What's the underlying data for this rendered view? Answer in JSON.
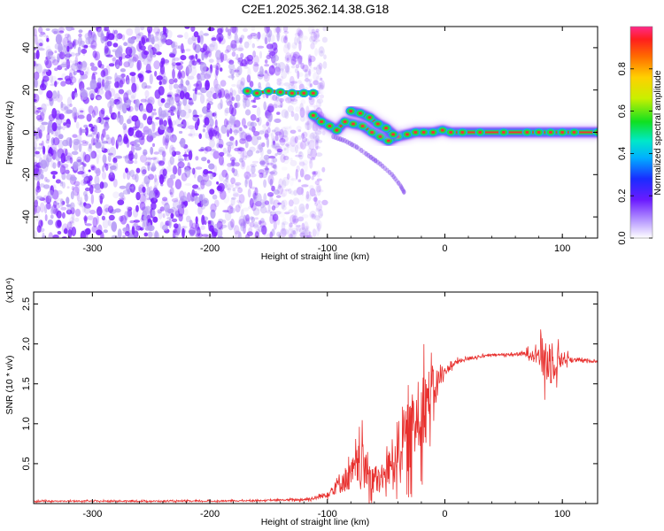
{
  "title": "C2E1.2025.362.14.38.G18",
  "colors": {
    "snr_line": "#e8312f",
    "heat_violet": "#7a1fff",
    "track_core": "#f03434",
    "track_mid": "#22dd44",
    "track_outer": "#1aa8e8"
  },
  "chart_data": [
    {
      "type": "heatmap",
      "xlabel": "Height of straight line (km)",
      "ylabel": "Frequency (Hz)",
      "xlim": [
        -350,
        130
      ],
      "ylim": [
        -50,
        50
      ],
      "xticks": [
        "-300",
        "-200",
        "-100",
        "0",
        "100"
      ],
      "xtick_values": [
        -300,
        -200,
        -100,
        0,
        100
      ],
      "yticks": [
        "40",
        "20",
        "0",
        "-20",
        "-40"
      ],
      "ytick_values": [
        40,
        20,
        0,
        -20,
        -40
      ],
      "colorbar": {
        "label": "Normalized spectral amplitude",
        "range": [
          0,
          1
        ],
        "ticks": [
          "0.0",
          "0.2",
          "0.4",
          "0.6",
          "0.8"
        ],
        "tick_values": [
          0,
          0.2,
          0.4,
          0.6,
          0.8
        ]
      },
      "noise_region": {
        "x_range": [
          -350,
          -110
        ],
        "y_range": [
          -50,
          50
        ],
        "amplitude": 0.2
      },
      "tracks": [
        {
          "x": [
            -168,
            -160,
            -150,
            -140,
            -130,
            -120,
            -112
          ],
          "y": [
            19.5,
            18.5,
            19.5,
            19,
            18.5,
            18.5,
            18.5
          ]
        },
        {
          "x": [
            -112,
            -105,
            -98,
            -92,
            -85,
            -78,
            -70,
            -62,
            -55,
            -48,
            -40,
            -32,
            -25,
            -18,
            -10,
            -2,
            5,
            15,
            30,
            50,
            70,
            80,
            90,
            100,
            110,
            130
          ],
          "y": [
            8,
            5,
            3,
            1,
            5,
            4,
            3,
            0,
            -2,
            -4,
            -2,
            -1,
            0,
            0,
            0,
            1,
            0,
            0,
            0,
            0,
            0,
            0,
            0,
            0,
            0,
            0
          ]
        },
        {
          "x": [
            -80,
            -72,
            -64,
            -57,
            -50,
            -44
          ],
          "y": [
            10,
            9,
            7,
            4,
            2,
            -1
          ]
        }
      ],
      "faint_streak": {
        "x": [
          -95,
          -85,
          -75,
          -65,
          -55,
          -45,
          -38,
          -34
        ],
        "y": [
          -2,
          -4,
          -7,
          -11,
          -15,
          -20,
          -25,
          -29
        ]
      }
    },
    {
      "type": "line",
      "xlabel": "Height of straight line (km)",
      "ylabel": "SNR (10 * v/v)",
      "scale_label": "(x10⁴)",
      "xlim": [
        -350,
        130
      ],
      "ylim": [
        0,
        2.65
      ],
      "xticks": [
        "-300",
        "-200",
        "-100",
        "0",
        "100"
      ],
      "xtick_values": [
        -300,
        -200,
        -100,
        0,
        100
      ],
      "yticks": [
        "0.5",
        "1.0",
        "1.5",
        "2.0",
        "2.5"
      ],
      "ytick_values": [
        0.5,
        1.0,
        1.5,
        2.0,
        2.5
      ],
      "series": [
        {
          "x": [
            -350,
            -300,
            -250,
            -200,
            -150,
            -120,
            -110,
            -100,
            -95,
            -90,
            -85,
            -80,
            -75,
            -70,
            -65,
            -60,
            -55,
            -50,
            -45,
            -40,
            -35,
            -30,
            -25,
            -20,
            -15,
            -10,
            -5,
            0,
            5,
            10,
            20,
            30,
            40,
            60,
            80,
            85,
            90,
            95,
            100,
            110,
            120,
            130
          ],
          "y": [
            0.03,
            0.03,
            0.03,
            0.03,
            0.04,
            0.05,
            0.07,
            0.12,
            0.18,
            0.26,
            0.3,
            0.35,
            0.45,
            0.5,
            0.38,
            0.3,
            0.28,
            0.38,
            0.52,
            0.7,
            0.78,
            0.85,
            1.0,
            1.2,
            1.3,
            1.4,
            1.55,
            1.65,
            1.72,
            1.77,
            1.82,
            1.84,
            1.86,
            1.87,
            1.88,
            1.8,
            1.75,
            1.8,
            1.82,
            1.8,
            1.79,
            1.78
          ],
          "amplitude_noise": [
            0.01,
            0.01,
            0.01,
            0.01,
            0.01,
            0.02,
            0.03,
            0.05,
            0.1,
            0.15,
            0.2,
            0.22,
            0.3,
            0.35,
            0.3,
            0.25,
            0.2,
            0.25,
            0.35,
            0.45,
            0.5,
            0.55,
            0.6,
            0.65,
            0.5,
            0.35,
            0.2,
            0.08,
            0.05,
            0.04,
            0.03,
            0.02,
            0.02,
            0.02,
            0.1,
            0.45,
            0.35,
            0.25,
            0.12,
            0.03,
            0.02,
            0.02
          ]
        }
      ]
    }
  ]
}
